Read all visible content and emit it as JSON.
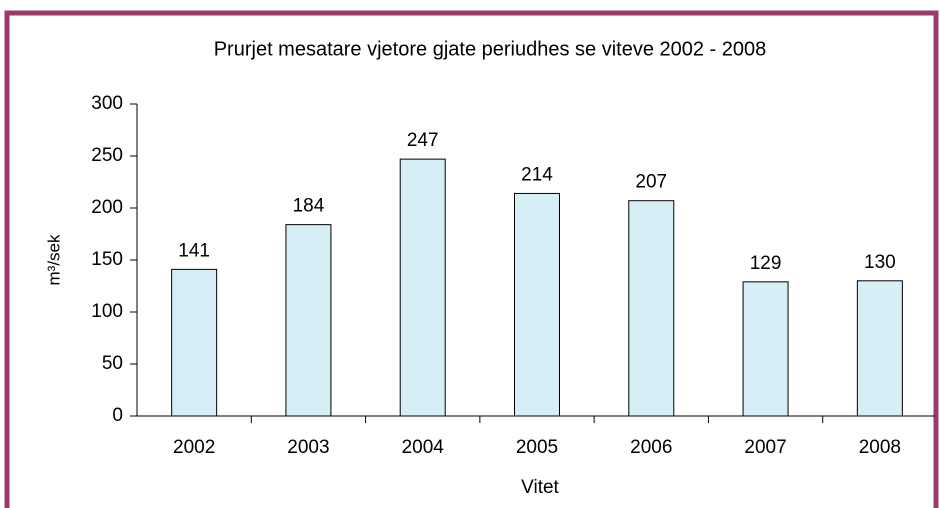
{
  "chart_data": {
    "type": "bar",
    "title": "Prurjet mesatare vjetore gjate periudhes se viteve 2002 - 2008",
    "x_label": "Vitet",
    "y_label": "m³/sek",
    "categories": [
      "2002",
      "2003",
      "2004",
      "2005",
      "2006",
      "2007",
      "2008"
    ],
    "values": [
      141,
      184,
      247,
      214,
      207,
      129,
      130
    ],
    "color": "#d6eef5",
    "ylim": [
      0,
      300
    ],
    "yticks": [
      0,
      50,
      100,
      150,
      200,
      250,
      300
    ],
    "grid": false
  }
}
